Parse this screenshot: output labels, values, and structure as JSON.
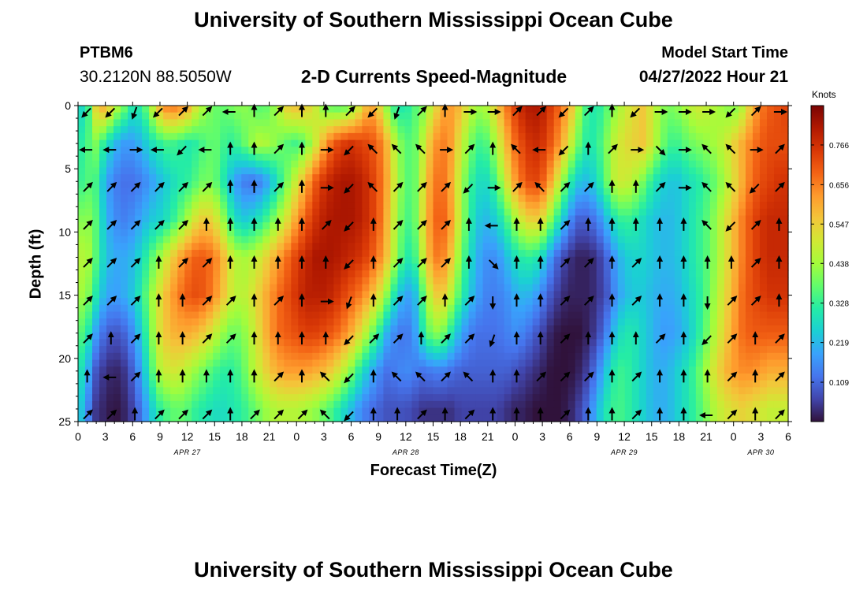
{
  "header": {
    "title": "University of Southern Mississippi Ocean Cube",
    "footer_title": "University of Southern Mississippi Ocean Cube",
    "station_id": "PTBM6",
    "station_coords": "30.2120N  88.5050W",
    "plot_title": "2-D Currents Speed-Magnitude",
    "model_start_label": "Model Start Time",
    "model_start_value": "04/27/2022 Hour 21"
  },
  "chart_data": {
    "type": "heatmap",
    "title": "2-D Currents Speed-Magnitude",
    "xlabel": "Forecast Time(Z)",
    "ylabel": "Depth (ft)",
    "x_hours_range": [
      0,
      78
    ],
    "ylim": [
      0,
      25
    ],
    "y_ticks": [
      0,
      5,
      10,
      15,
      20,
      25
    ],
    "x_ticks": [
      {
        "h": 0,
        "label": "0"
      },
      {
        "h": 3,
        "label": "3"
      },
      {
        "h": 6,
        "label": "6"
      },
      {
        "h": 9,
        "label": "9"
      },
      {
        "h": 12,
        "label": "12"
      },
      {
        "h": 15,
        "label": "15"
      },
      {
        "h": 18,
        "label": "18"
      },
      {
        "h": 21,
        "label": "21"
      },
      {
        "h": 24,
        "label": "0"
      },
      {
        "h": 27,
        "label": "3"
      },
      {
        "h": 30,
        "label": "6"
      },
      {
        "h": 33,
        "label": "9"
      },
      {
        "h": 36,
        "label": "12"
      },
      {
        "h": 39,
        "label": "15"
      },
      {
        "h": 42,
        "label": "18"
      },
      {
        "h": 45,
        "label": "21"
      },
      {
        "h": 48,
        "label": "0"
      },
      {
        "h": 51,
        "label": "3"
      },
      {
        "h": 54,
        "label": "6"
      },
      {
        "h": 57,
        "label": "9"
      },
      {
        "h": 60,
        "label": "12"
      },
      {
        "h": 63,
        "label": "15"
      },
      {
        "h": 66,
        "label": "18"
      },
      {
        "h": 69,
        "label": "21"
      },
      {
        "h": 72,
        "label": "0"
      },
      {
        "h": 75,
        "label": "3"
      },
      {
        "h": 78,
        "label": "6"
      }
    ],
    "date_labels": [
      {
        "h": 12,
        "label": "APR 27"
      },
      {
        "h": 36,
        "label": "APR 28"
      },
      {
        "h": 60,
        "label": "APR 29"
      },
      {
        "h": 75,
        "label": "APR 30"
      }
    ],
    "colorbar": {
      "title": "Knots",
      "min": 0.0,
      "max": 0.875,
      "ticks": [
        "0.766",
        "0.656",
        "0.547",
        "0.438",
        "0.328",
        "0.219",
        "0.109"
      ],
      "tick_values": [
        0.766,
        0.656,
        0.547,
        0.438,
        0.328,
        0.219,
        0.109
      ],
      "colors": [
        "#30123b",
        "#4145ab",
        "#4675ed",
        "#39a2fc",
        "#1bcfd4",
        "#24eca6",
        "#61fc6c",
        "#a4fc3b",
        "#d1e834",
        "#f3c63a",
        "#fe9b2d",
        "#f36315",
        "#d93806",
        "#b11901",
        "#7a0403"
      ]
    },
    "depths_ft": [
      0,
      3,
      6,
      9,
      12,
      15,
      18,
      21,
      24
    ],
    "speed_knots": [
      [
        0.25,
        0.3,
        0.55,
        0.62,
        0.48,
        0.4,
        0.3,
        0.32,
        0.45,
        0.6,
        0.68,
        0.66,
        0.62,
        0.5,
        0.42,
        0.38,
        0.38,
        0.4,
        0.42,
        0.4,
        0.36,
        0.38,
        0.46,
        0.55,
        0.58,
        0.56,
        0.5,
        0.4,
        0.36,
        0.36,
        0.4,
        0.5,
        0.62,
        0.55,
        0.4,
        0.3,
        0.3,
        0.36,
        0.4,
        0.5,
        0.6,
        0.62,
        0.58,
        0.48,
        0.44,
        0.46,
        0.56,
        0.66,
        0.74,
        0.8,
        0.82,
        0.8,
        0.74,
        0.68,
        0.6,
        0.44,
        0.32,
        0.3,
        0.36,
        0.42,
        0.48,
        0.52,
        0.56,
        0.5,
        0.42,
        0.4,
        0.42,
        0.46,
        0.5,
        0.48,
        0.45,
        0.42,
        0.4,
        0.46,
        0.58,
        0.66,
        0.7,
        0.72,
        0.74
      ],
      [
        0.3,
        0.35,
        0.4,
        0.3,
        0.22,
        0.18,
        0.18,
        0.22,
        0.28,
        0.32,
        0.35,
        0.33,
        0.3,
        0.32,
        0.36,
        0.38,
        0.34,
        0.32,
        0.36,
        0.42,
        0.46,
        0.44,
        0.4,
        0.36,
        0.34,
        0.38,
        0.48,
        0.6,
        0.7,
        0.74,
        0.76,
        0.74,
        0.72,
        0.68,
        0.58,
        0.44,
        0.36,
        0.38,
        0.48,
        0.62,
        0.66,
        0.62,
        0.5,
        0.4,
        0.34,
        0.36,
        0.46,
        0.58,
        0.68,
        0.74,
        0.78,
        0.76,
        0.7,
        0.62,
        0.5,
        0.38,
        0.3,
        0.32,
        0.4,
        0.48,
        0.52,
        0.54,
        0.56,
        0.5,
        0.4,
        0.34,
        0.34,
        0.38,
        0.4,
        0.42,
        0.44,
        0.48,
        0.54,
        0.6,
        0.66,
        0.7,
        0.72,
        0.72,
        0.72
      ],
      [
        0.32,
        0.36,
        0.34,
        0.2,
        0.14,
        0.12,
        0.12,
        0.14,
        0.18,
        0.22,
        0.26,
        0.3,
        0.32,
        0.36,
        0.4,
        0.38,
        0.3,
        0.2,
        0.14,
        0.12,
        0.14,
        0.2,
        0.3,
        0.4,
        0.5,
        0.6,
        0.7,
        0.76,
        0.8,
        0.82,
        0.82,
        0.8,
        0.76,
        0.7,
        0.6,
        0.46,
        0.36,
        0.38,
        0.52,
        0.66,
        0.68,
        0.6,
        0.46,
        0.34,
        0.28,
        0.28,
        0.36,
        0.5,
        0.62,
        0.7,
        0.74,
        0.7,
        0.6,
        0.46,
        0.32,
        0.24,
        0.22,
        0.28,
        0.38,
        0.48,
        0.5,
        0.46,
        0.4,
        0.32,
        0.26,
        0.24,
        0.24,
        0.28,
        0.3,
        0.34,
        0.38,
        0.44,
        0.52,
        0.6,
        0.68,
        0.72,
        0.74,
        0.76,
        0.76
      ],
      [
        0.4,
        0.42,
        0.36,
        0.22,
        0.16,
        0.14,
        0.16,
        0.2,
        0.24,
        0.26,
        0.3,
        0.36,
        0.44,
        0.52,
        0.56,
        0.52,
        0.42,
        0.3,
        0.24,
        0.26,
        0.3,
        0.36,
        0.44,
        0.52,
        0.62,
        0.7,
        0.76,
        0.8,
        0.82,
        0.82,
        0.82,
        0.8,
        0.76,
        0.7,
        0.58,
        0.44,
        0.34,
        0.38,
        0.54,
        0.68,
        0.7,
        0.62,
        0.46,
        0.32,
        0.24,
        0.22,
        0.26,
        0.34,
        0.44,
        0.52,
        0.56,
        0.52,
        0.4,
        0.28,
        0.16,
        0.1,
        0.1,
        0.14,
        0.22,
        0.3,
        0.34,
        0.32,
        0.28,
        0.24,
        0.22,
        0.22,
        0.24,
        0.28,
        0.32,
        0.36,
        0.42,
        0.5,
        0.58,
        0.66,
        0.72,
        0.76,
        0.78,
        0.78,
        0.78
      ],
      [
        0.46,
        0.46,
        0.36,
        0.24,
        0.2,
        0.2,
        0.22,
        0.28,
        0.36,
        0.44,
        0.52,
        0.6,
        0.66,
        0.7,
        0.7,
        0.66,
        0.58,
        0.48,
        0.44,
        0.46,
        0.5,
        0.56,
        0.62,
        0.68,
        0.74,
        0.78,
        0.82,
        0.82,
        0.82,
        0.8,
        0.78,
        0.76,
        0.72,
        0.66,
        0.56,
        0.42,
        0.3,
        0.34,
        0.5,
        0.66,
        0.66,
        0.56,
        0.4,
        0.28,
        0.2,
        0.16,
        0.16,
        0.22,
        0.28,
        0.32,
        0.32,
        0.26,
        0.16,
        0.08,
        0.04,
        0.02,
        0.02,
        0.04,
        0.1,
        0.18,
        0.24,
        0.26,
        0.26,
        0.24,
        0.22,
        0.22,
        0.24,
        0.28,
        0.32,
        0.36,
        0.42,
        0.5,
        0.58,
        0.66,
        0.72,
        0.76,
        0.78,
        0.78,
        0.78
      ],
      [
        0.44,
        0.42,
        0.3,
        0.2,
        0.18,
        0.2,
        0.24,
        0.32,
        0.42,
        0.52,
        0.6,
        0.66,
        0.7,
        0.72,
        0.7,
        0.64,
        0.56,
        0.48,
        0.46,
        0.5,
        0.56,
        0.62,
        0.68,
        0.72,
        0.76,
        0.8,
        0.8,
        0.8,
        0.78,
        0.74,
        0.7,
        0.66,
        0.6,
        0.52,
        0.4,
        0.26,
        0.18,
        0.22,
        0.38,
        0.54,
        0.56,
        0.46,
        0.34,
        0.24,
        0.18,
        0.14,
        0.14,
        0.16,
        0.2,
        0.22,
        0.2,
        0.14,
        0.08,
        0.04,
        0.02,
        0.02,
        0.02,
        0.04,
        0.08,
        0.16,
        0.22,
        0.24,
        0.24,
        0.22,
        0.2,
        0.2,
        0.22,
        0.26,
        0.3,
        0.36,
        0.44,
        0.52,
        0.6,
        0.68,
        0.72,
        0.74,
        0.76,
        0.76,
        0.76
      ],
      [
        0.38,
        0.32,
        0.18,
        0.1,
        0.08,
        0.1,
        0.16,
        0.26,
        0.4,
        0.52,
        0.58,
        0.6,
        0.6,
        0.58,
        0.54,
        0.48,
        0.42,
        0.38,
        0.4,
        0.46,
        0.54,
        0.62,
        0.68,
        0.7,
        0.72,
        0.74,
        0.74,
        0.72,
        0.7,
        0.66,
        0.6,
        0.52,
        0.42,
        0.32,
        0.2,
        0.14,
        0.12,
        0.18,
        0.32,
        0.42,
        0.4,
        0.3,
        0.2,
        0.14,
        0.12,
        0.12,
        0.12,
        0.14,
        0.16,
        0.14,
        0.1,
        0.06,
        0.02,
        0.0,
        0.0,
        0.0,
        0.02,
        0.06,
        0.14,
        0.24,
        0.3,
        0.3,
        0.26,
        0.22,
        0.18,
        0.18,
        0.2,
        0.24,
        0.3,
        0.38,
        0.46,
        0.54,
        0.62,
        0.68,
        0.7,
        0.7,
        0.7,
        0.7,
        0.7
      ],
      [
        0.32,
        0.22,
        0.08,
        0.04,
        0.02,
        0.04,
        0.1,
        0.2,
        0.34,
        0.46,
        0.5,
        0.5,
        0.46,
        0.42,
        0.38,
        0.34,
        0.32,
        0.32,
        0.36,
        0.44,
        0.5,
        0.56,
        0.6,
        0.62,
        0.62,
        0.62,
        0.6,
        0.58,
        0.54,
        0.48,
        0.4,
        0.3,
        0.22,
        0.16,
        0.12,
        0.14,
        0.16,
        0.14,
        0.12,
        0.14,
        0.14,
        0.12,
        0.1,
        0.1,
        0.1,
        0.1,
        0.1,
        0.1,
        0.08,
        0.06,
        0.04,
        0.02,
        0.0,
        0.0,
        0.0,
        0.02,
        0.06,
        0.14,
        0.24,
        0.32,
        0.34,
        0.3,
        0.26,
        0.22,
        0.2,
        0.22,
        0.26,
        0.3,
        0.36,
        0.44,
        0.52,
        0.58,
        0.62,
        0.64,
        0.64,
        0.62,
        0.6,
        0.6,
        0.6
      ],
      [
        0.28,
        0.16,
        0.04,
        0.02,
        0.0,
        0.02,
        0.06,
        0.14,
        0.24,
        0.32,
        0.36,
        0.38,
        0.36,
        0.32,
        0.3,
        0.28,
        0.28,
        0.3,
        0.32,
        0.36,
        0.4,
        0.44,
        0.46,
        0.46,
        0.46,
        0.44,
        0.42,
        0.38,
        0.34,
        0.28,
        0.22,
        0.16,
        0.12,
        0.1,
        0.08,
        0.08,
        0.08,
        0.06,
        0.04,
        0.04,
        0.04,
        0.04,
        0.06,
        0.06,
        0.06,
        0.06,
        0.06,
        0.04,
        0.02,
        0.02,
        0.0,
        0.0,
        0.0,
        0.0,
        0.02,
        0.06,
        0.12,
        0.22,
        0.3,
        0.34,
        0.34,
        0.3,
        0.26,
        0.22,
        0.2,
        0.22,
        0.26,
        0.3,
        0.34,
        0.4,
        0.46,
        0.5,
        0.52,
        0.54,
        0.52,
        0.5,
        0.48,
        0.48,
        0.48
      ]
    ],
    "vectors": [
      [
        225,
        225,
        200,
        225,
        45,
        45,
        270,
        0,
        45,
        0,
        0,
        45,
        225,
        200,
        45,
        0,
        90,
        90,
        45,
        45,
        225,
        45,
        0,
        225,
        90,
        90,
        90,
        225,
        45,
        90
      ],
      [
        270,
        270,
        90,
        270,
        225,
        270,
        0,
        0,
        45,
        0,
        90,
        225,
        315,
        315,
        315,
        90,
        45,
        0,
        315,
        270,
        225,
        0,
        45,
        90,
        135,
        90,
        315,
        315,
        90,
        45
      ],
      [
        45,
        45,
        45,
        45,
        45,
        45,
        0,
        0,
        45,
        0,
        90,
        225,
        315,
        45,
        45,
        45,
        225,
        90,
        45,
        315,
        45,
        45,
        0,
        0,
        45,
        90,
        315,
        315,
        225,
        45
      ],
      [
        45,
        45,
        45,
        45,
        45,
        0,
        0,
        0,
        0,
        0,
        45,
        225,
        0,
        45,
        45,
        45,
        0,
        270,
        0,
        0,
        45,
        0,
        0,
        0,
        0,
        0,
        315,
        225,
        45,
        0
      ],
      [
        45,
        45,
        45,
        0,
        45,
        45,
        0,
        0,
        0,
        0,
        0,
        225,
        0,
        45,
        45,
        45,
        0,
        135,
        0,
        0,
        45,
        45,
        0,
        45,
        0,
        0,
        0,
        0,
        45,
        0
      ],
      [
        45,
        45,
        45,
        0,
        0,
        45,
        45,
        0,
        45,
        0,
        90,
        200,
        0,
        45,
        45,
        0,
        45,
        180,
        0,
        0,
        45,
        45,
        0,
        45,
        0,
        0,
        180,
        45,
        45,
        0
      ],
      [
        45,
        0,
        45,
        0,
        0,
        45,
        45,
        0,
        0,
        0,
        0,
        225,
        45,
        45,
        0,
        45,
        45,
        200,
        0,
        0,
        45,
        0,
        0,
        0,
        45,
        0,
        225,
        45,
        0,
        45
      ],
      [
        0,
        270,
        45,
        0,
        0,
        0,
        0,
        0,
        45,
        0,
        315,
        225,
        0,
        315,
        315,
        45,
        315,
        0,
        0,
        45,
        45,
        45,
        0,
        45,
        0,
        0,
        0,
        45,
        0,
        45
      ],
      [
        45,
        45,
        0,
        45,
        45,
        45,
        0,
        45,
        45,
        45,
        315,
        225,
        0,
        0,
        45,
        0,
        45,
        0,
        0,
        0,
        45,
        0,
        0,
        45,
        0,
        0,
        270,
        45,
        0,
        45
      ]
    ]
  }
}
